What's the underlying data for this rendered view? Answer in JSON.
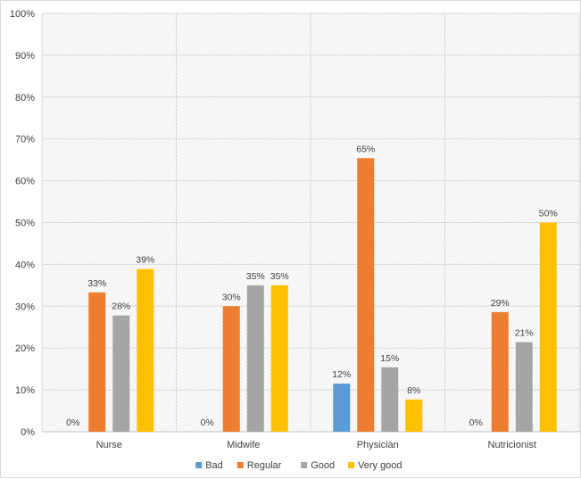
{
  "chart_data": {
    "type": "bar",
    "title": "",
    "xlabel": "",
    "ylabel": "",
    "ylim": [
      0,
      100
    ],
    "ytick_step": 10,
    "ytick_format": "percent",
    "grid": true,
    "legend_position": "bottom",
    "categories": [
      "Nurse",
      "Midwife",
      "Physician",
      "Nutricionist"
    ],
    "series": [
      {
        "name": "Bad",
        "color": "#5b9bd5",
        "values": [
          0,
          0,
          11.5,
          0
        ],
        "labels": [
          "0%",
          "0%",
          "12%",
          "0%"
        ]
      },
      {
        "name": "Regular",
        "color": "#ed7d31",
        "values": [
          33.3,
          30,
          65.4,
          28.6
        ],
        "labels": [
          "33%",
          "30%",
          "65%",
          "29%"
        ]
      },
      {
        "name": "Good",
        "color": "#a5a5a5",
        "values": [
          27.8,
          35,
          15.4,
          21.4
        ],
        "labels": [
          "28%",
          "35%",
          "15%",
          "21%"
        ]
      },
      {
        "name": "Very good",
        "color": "#ffc000",
        "values": [
          38.9,
          35,
          7.7,
          50
        ],
        "labels": [
          "39%",
          "35%",
          "8%",
          "50%"
        ]
      }
    ]
  }
}
